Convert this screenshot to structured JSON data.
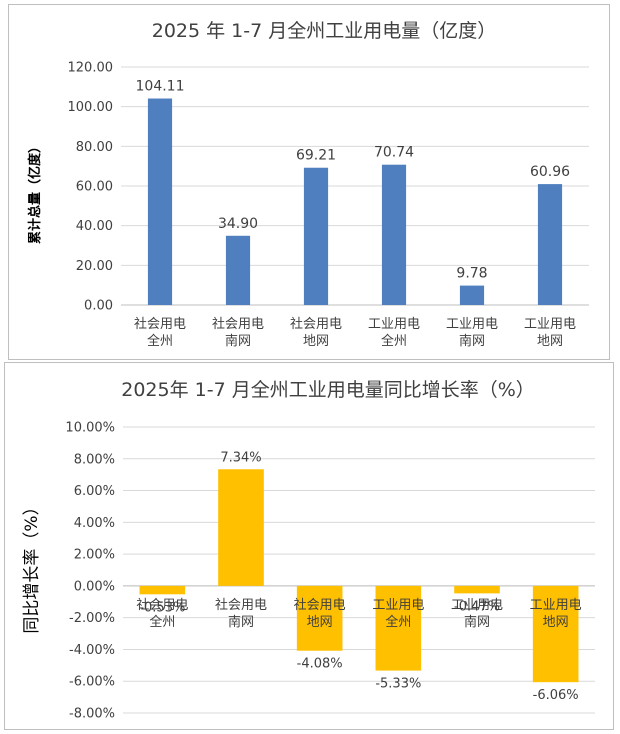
{
  "chart_data": [
    {
      "type": "bar",
      "title": "2025 年 1-7 月全州工业用电量（亿度）",
      "ylabel": "累计总量（亿度）",
      "categories": [
        [
          "社会用电",
          "全州"
        ],
        [
          "社会用电",
          "南网"
        ],
        [
          "社会用电",
          "地网"
        ],
        [
          "工业用电",
          "全州"
        ],
        [
          "工业用电",
          "南网"
        ],
        [
          "工业用电",
          "地网"
        ]
      ],
      "values": [
        104.11,
        34.9,
        69.21,
        70.74,
        9.78,
        60.96
      ],
      "data_labels": [
        "104.11",
        "34.90",
        "69.21",
        "70.74",
        "9.78",
        "60.96"
      ],
      "ylim": [
        0,
        120
      ],
      "yticks": [
        "0.00",
        "20.00",
        "40.00",
        "60.00",
        "80.00",
        "100.00",
        "120.00"
      ],
      "grid": true,
      "color": "#4F7FBF"
    },
    {
      "type": "bar",
      "title": "2025年 1-7 月全州工业用电量同比增长率（%）",
      "ylabel": "同比增长率（%）",
      "categories": [
        [
          "社会用电",
          "全州"
        ],
        [
          "社会用电",
          "南网"
        ],
        [
          "社会用电",
          "地网"
        ],
        [
          "工业用电",
          "全州"
        ],
        [
          "工业用电",
          "南网"
        ],
        [
          "工业用电",
          "地网"
        ]
      ],
      "values": [
        -0.53,
        7.34,
        -4.08,
        -5.33,
        -0.47,
        -6.06
      ],
      "data_labels": [
        "-0.53%",
        "7.34%",
        "-4.08%",
        "-5.33%",
        "-0.47%",
        "-6.06%"
      ],
      "ylim": [
        -8,
        10
      ],
      "yticks": [
        "-8.00%",
        "-6.00%",
        "-4.00%",
        "-2.00%",
        "0.00%",
        "2.00%",
        "4.00%",
        "6.00%",
        "8.00%",
        "10.00%"
      ],
      "grid": true,
      "color": "#FFC000"
    }
  ]
}
